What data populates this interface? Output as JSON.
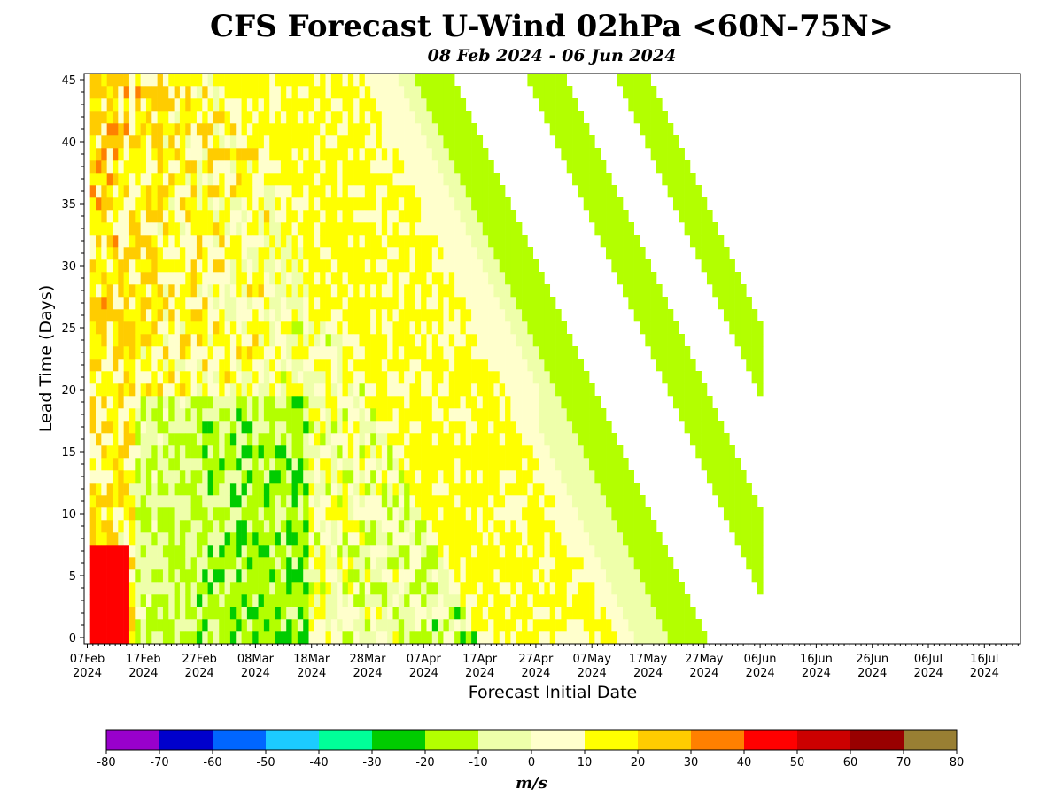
{
  "chart_data": {
    "type": "heatmap",
    "title": "CFS Forecast U-Wind 02hPa <60N-75N>",
    "subtitle": "08 Feb 2024 - 06 Jun 2024",
    "xlabel": "Forecast Initial Date",
    "ylabel": "Lead Time (Days)",
    "colorbar_label": "m/s",
    "x_range": [
      "2024-02-07",
      "2024-07-24"
    ],
    "y_range": [
      0,
      45
    ],
    "x_ticks": [
      {
        "line1": "07Feb",
        "line2": "2024"
      },
      {
        "line1": "17Feb",
        "line2": "2024"
      },
      {
        "line1": "27Feb",
        "line2": "2024"
      },
      {
        "line1": "08Mar",
        "line2": "2024"
      },
      {
        "line1": "18Mar",
        "line2": "2024"
      },
      {
        "line1": "28Mar",
        "line2": "2024"
      },
      {
        "line1": "07Apr",
        "line2": "2024"
      },
      {
        "line1": "17Apr",
        "line2": "2024"
      },
      {
        "line1": "27Apr",
        "line2": "2024"
      },
      {
        "line1": "07May",
        "line2": "2024"
      },
      {
        "line1": "17May",
        "line2": "2024"
      },
      {
        "line1": "27May",
        "line2": "2024"
      },
      {
        "line1": "06Jun",
        "line2": "2024"
      },
      {
        "line1": "16Jun",
        "line2": "2024"
      },
      {
        "line1": "26Jun",
        "line2": "2024"
      },
      {
        "line1": "06Jul",
        "line2": "2024"
      },
      {
        "line1": "16Jul",
        "line2": "2024"
      }
    ],
    "y_ticks": [
      "0",
      "5",
      "10",
      "15",
      "20",
      "25",
      "30",
      "35",
      "40",
      "45"
    ],
    "colorbar_ticks": [
      "-80",
      "-70",
      "-60",
      "-50",
      "-40",
      "-30",
      "-20",
      "-10",
      "0",
      "10",
      "20",
      "30",
      "40",
      "50",
      "60",
      "70",
      "80"
    ],
    "colorbar_colors": [
      "#9900cc",
      "#0000cc",
      "#0066ff",
      "#1ccbff",
      "#00ff99",
      "#00cc00",
      "#b3ff00",
      "#eeffaa",
      "#ffffcc",
      "#ffff00",
      "#ffcc00",
      "#ff8000",
      "#ff0000",
      "#cc0000",
      "#990000",
      "#997f33"
    ]
  }
}
